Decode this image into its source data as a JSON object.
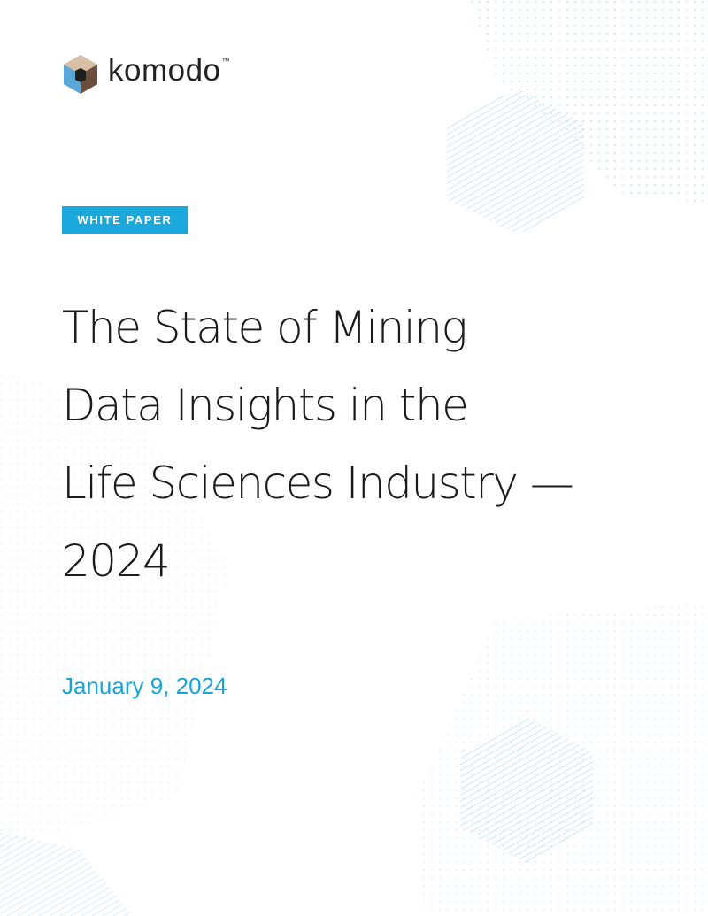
{
  "logo": {
    "name": "komodo",
    "mark": "™"
  },
  "badge": "WHITE PAPER",
  "title_lines": [
    "The State of Mining",
    "Data Insights in the",
    "Life Sciences Industry —",
    "2024"
  ],
  "date": "January 9, 2024"
}
